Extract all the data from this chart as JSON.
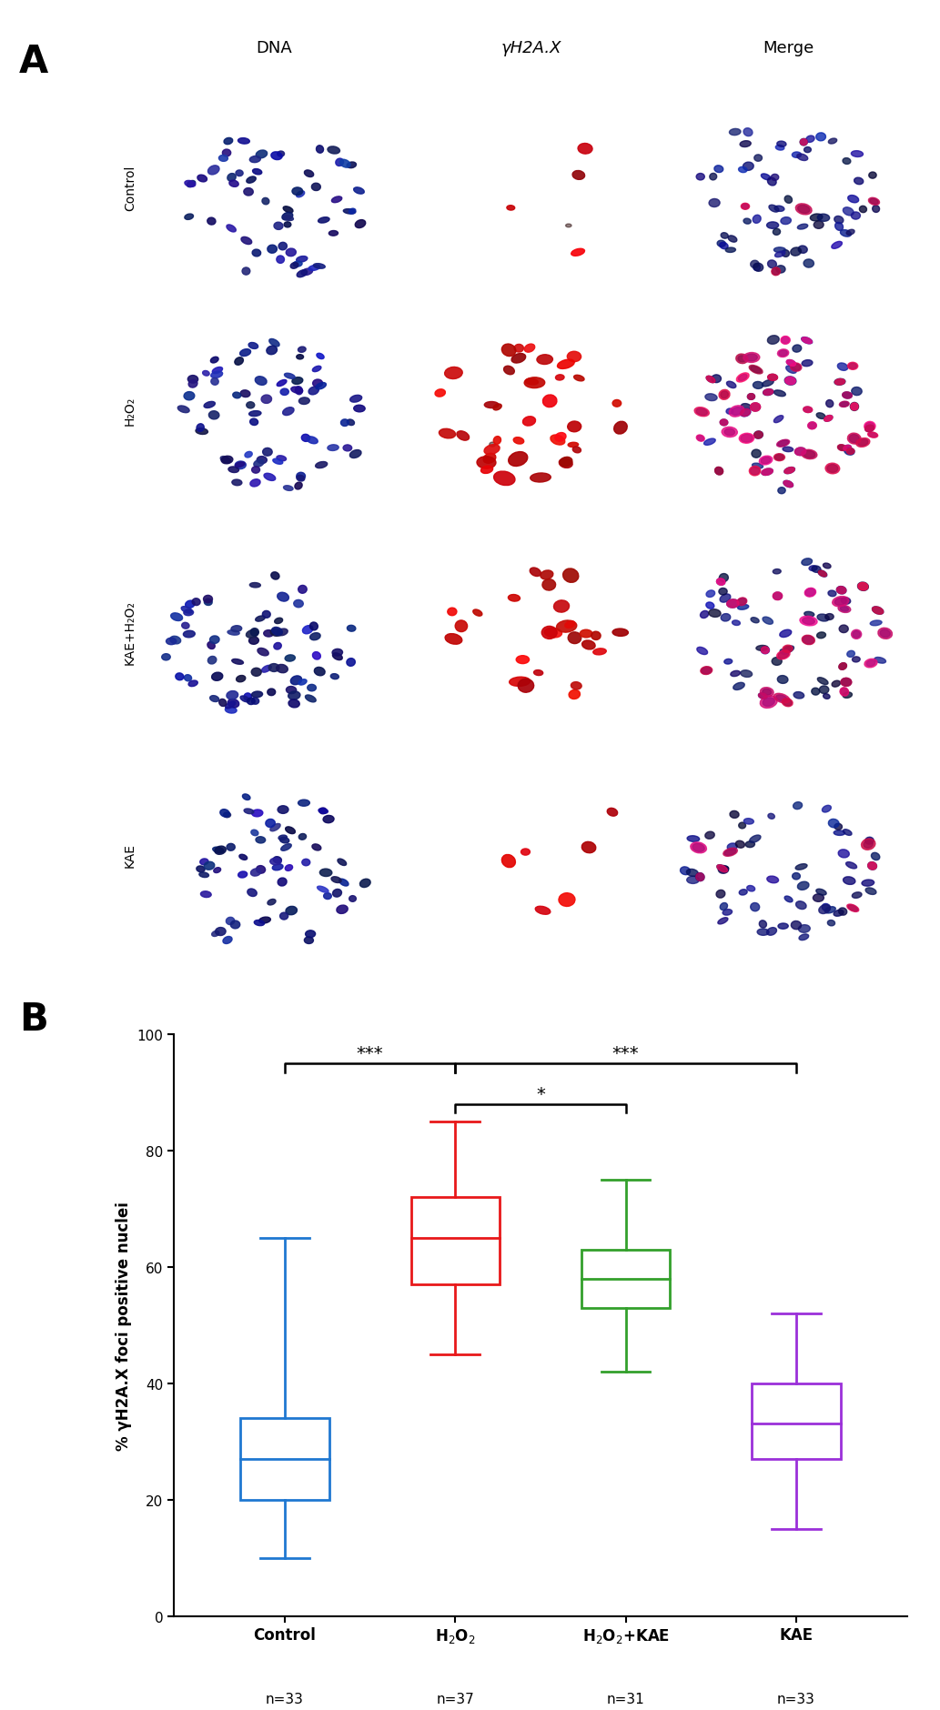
{
  "panel_A_label": "A",
  "panel_B_label": "B",
  "col_labels": [
    "DNA",
    "γH2A.X",
    "Merge"
  ],
  "row_labels": [
    "Control",
    "H₂O₂",
    "KAE+H₂O₂",
    "KAE"
  ],
  "box_data": {
    "Control": {
      "whislo": 10,
      "q1": 20,
      "med": 27,
      "q3": 34,
      "whishi": 65
    },
    "H2O2": {
      "whislo": 45,
      "q1": 57,
      "med": 65,
      "q3": 72,
      "whishi": 85
    },
    "H2O2+KAE": {
      "whislo": 42,
      "q1": 53,
      "med": 58,
      "q3": 63,
      "whishi": 75
    },
    "KAE": {
      "whislo": 15,
      "q1": 27,
      "med": 33,
      "q3": 40,
      "whishi": 52
    }
  },
  "box_colors": [
    "#1f78d1",
    "#e8181a",
    "#33a02c",
    "#9b30d9"
  ],
  "n_labels": [
    "n=33",
    "n=37",
    "n=31",
    "n=33"
  ],
  "ylabel": "% γH2A.X foci positive nuclei",
  "ylim": [
    0,
    100
  ],
  "yticks": [
    0,
    20,
    40,
    60,
    80,
    100
  ],
  "background_color": "#ffffff",
  "red_density": [
    0.08,
    0.7,
    0.38,
    0.12
  ]
}
